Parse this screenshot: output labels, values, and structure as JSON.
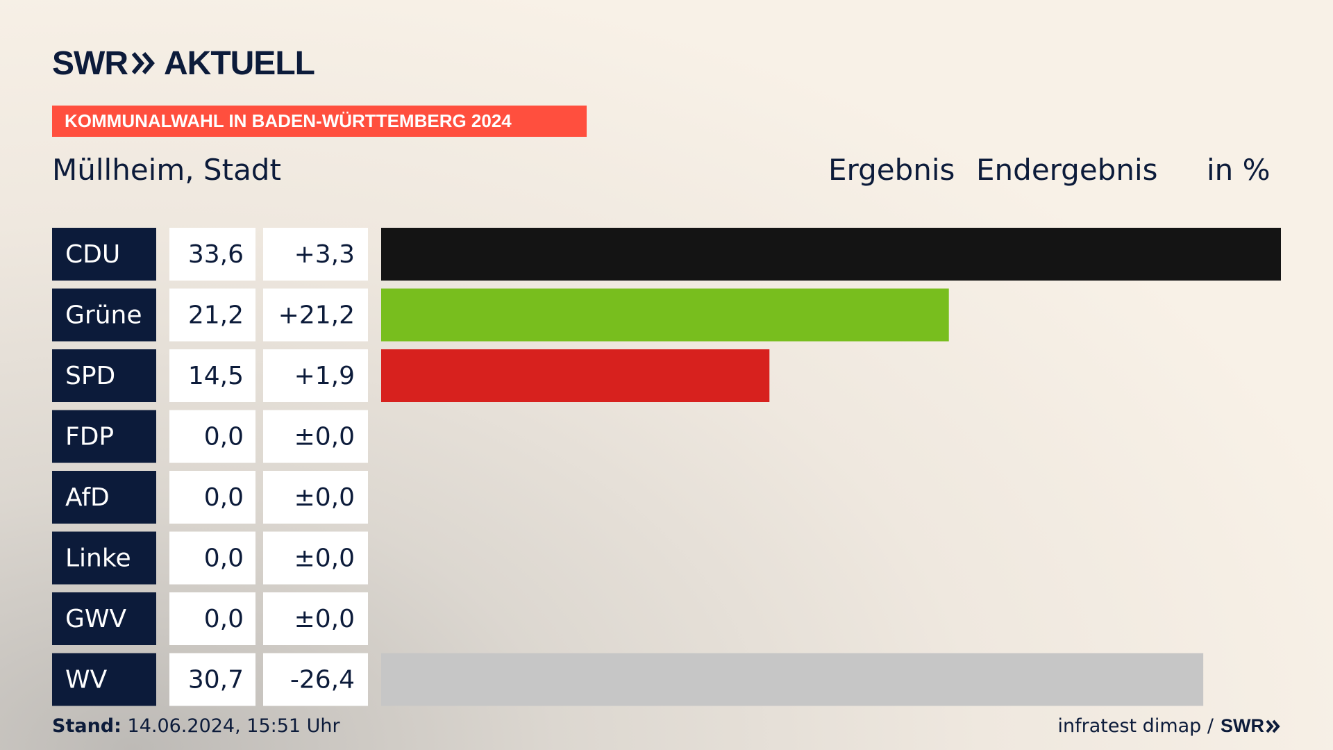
{
  "brand": {
    "name": "SWR",
    "product": "AKTUELL",
    "footer_brand": "SWR"
  },
  "banner": {
    "text": "KOMMUNALWAHL IN BADEN-WÜRTTEMBERG 2024"
  },
  "header": {
    "region": "Müllheim, Stadt",
    "col1": "Ergebnis",
    "col2": "Endergebnis",
    "col3": "in %"
  },
  "footer": {
    "stand_label": "Stand:",
    "stand_value": "14.06.2024, 15:51 Uhr",
    "source": "infratest dimap /"
  },
  "colors": {
    "navy": "#0c1b3a",
    "banner": "#ff4f3e",
    "white": "#ffffff"
  },
  "chart_data": {
    "type": "bar",
    "orientation": "horizontal",
    "title": "Müllheim, Stadt",
    "unit": "%",
    "categories": [
      "CDU",
      "Grüne",
      "SPD",
      "FDP",
      "AfD",
      "Linke",
      "GWV",
      "WV"
    ],
    "values": [
      33.6,
      21.2,
      14.5,
      0.0,
      0.0,
      0.0,
      0.0,
      30.7
    ],
    "value_labels": [
      "33,6",
      "21,2",
      "14,5",
      "0,0",
      "0,0",
      "0,0",
      "0,0",
      "30,7"
    ],
    "change_labels": [
      "+3,3",
      "+21,2",
      "+1,9",
      "±0,0",
      "±0,0",
      "±0,0",
      "±0,0",
      "-26,4"
    ],
    "bar_colors": [
      "#141414",
      "#78be1e",
      "#d7211e",
      "#f5d300",
      "#009ee0",
      "#be3075",
      "#888888",
      "#c6c6c6"
    ],
    "xlim": [
      0,
      33.6
    ]
  }
}
